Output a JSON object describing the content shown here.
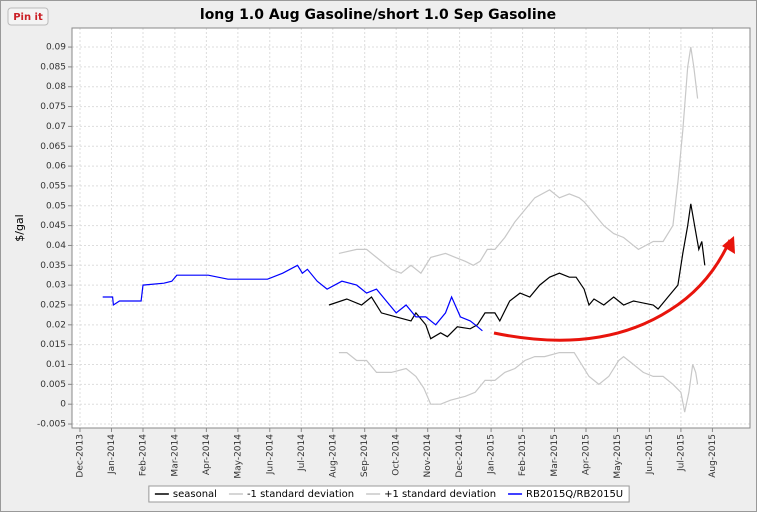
{
  "pin_label": "Pin it",
  "chart_data": {
    "type": "line",
    "title": "long 1.0 Aug Gasoline/short 1.0 Sep Gasoline",
    "y_label": "$/gal",
    "xlim": [
      2013.896,
      2015.682
    ],
    "ylim": [
      -0.006,
      0.0948
    ],
    "xticks": [
      {
        "value": 2013.917,
        "label": "Dec-2013"
      },
      {
        "value": 2014,
        "label": "Jan-2014"
      },
      {
        "value": 2014.083,
        "label": "Feb-2014"
      },
      {
        "value": 2014.167,
        "label": "Mar-2014"
      },
      {
        "value": 2014.25,
        "label": "Apr-2014"
      },
      {
        "value": 2014.333,
        "label": "May-2014"
      },
      {
        "value": 2014.417,
        "label": "Jun-2014"
      },
      {
        "value": 2014.5,
        "label": "Jul-2014"
      },
      {
        "value": 2014.583,
        "label": "Aug-2014"
      },
      {
        "value": 2014.667,
        "label": "Sep-2014"
      },
      {
        "value": 2014.75,
        "label": "Oct-2014"
      },
      {
        "value": 2014.833,
        "label": "Nov-2014"
      },
      {
        "value": 2014.917,
        "label": "Dec-2014"
      },
      {
        "value": 2015,
        "label": "Jan-2015"
      },
      {
        "value": 2015.083,
        "label": "Feb-2015"
      },
      {
        "value": 2015.167,
        "label": "Mar-2015"
      },
      {
        "value": 2015.25,
        "label": "Apr-2015"
      },
      {
        "value": 2015.333,
        "label": "May-2015"
      },
      {
        "value": 2015.417,
        "label": "Jun-2015"
      },
      {
        "value": 2015.5,
        "label": "Jul-2015"
      },
      {
        "value": 2015.583,
        "label": "Aug-2015"
      }
    ],
    "yticks": [
      -0.005,
      0,
      0.005,
      0.01,
      0.015,
      0.02,
      0.025,
      0.03,
      0.035,
      0.04,
      0.045,
      0.05,
      0.055,
      0.06,
      0.065,
      0.07,
      0.075,
      0.08,
      0.085,
      0.09
    ],
    "grid": true,
    "legend": "bottom",
    "series": [
      {
        "name": "seasonal",
        "color": "#000000",
        "x": [
          2014.573,
          2014.62,
          2014.659,
          2014.685,
          2014.711,
          2014.75,
          2014.789,
          2014.802,
          2014.828,
          2014.841,
          2014.867,
          2014.885,
          2014.911,
          2014.945,
          2014.964,
          2014.984,
          2015.01,
          2015.023,
          2015.049,
          2015.076,
          2015.102,
          2015.128,
          2015.154,
          2015.18,
          2015.206,
          2015.224,
          2015.245,
          2015.258,
          2015.271,
          2015.297,
          2015.323,
          2015.349,
          2015.375,
          2015.427,
          2015.44,
          2015.466,
          2015.492,
          2015.505,
          2015.518,
          2015.526,
          2015.536,
          2015.547,
          2015.555,
          2015.563
        ],
        "values": [
          0.025,
          0.0265,
          0.025,
          0.027,
          0.023,
          0.022,
          0.021,
          0.023,
          0.02,
          0.0165,
          0.018,
          0.017,
          0.0195,
          0.019,
          0.02,
          0.023,
          0.023,
          0.021,
          0.026,
          0.028,
          0.027,
          0.03,
          0.032,
          0.033,
          0.032,
          0.032,
          0.029,
          0.025,
          0.0265,
          0.025,
          0.027,
          0.025,
          0.026,
          0.025,
          0.024,
          0.027,
          0.03,
          0.038,
          0.045,
          0.0505,
          0.045,
          0.039,
          0.041,
          0.035
        ]
      },
      {
        "name": "-1 standard deviation",
        "color": "#c8c8c8",
        "x": [
          2014.599,
          2014.62,
          2014.646,
          2014.672,
          2014.698,
          2014.737,
          2014.776,
          2014.802,
          2014.823,
          2014.841,
          2014.867,
          2014.893,
          2014.932,
          2014.958,
          2014.984,
          2015.01,
          2015.036,
          2015.063,
          2015.089,
          2015.115,
          2015.141,
          2015.18,
          2015.219,
          2015.258,
          2015.271,
          2015.284,
          2015.31,
          2015.336,
          2015.349,
          2015.375,
          2015.401,
          2015.427,
          2015.453,
          2015.479,
          2015.5,
          2015.51,
          2015.521,
          2015.531,
          2015.539,
          2015.544
        ],
        "values": [
          0.013,
          0.013,
          0.011,
          0.011,
          0.008,
          0.008,
          0.009,
          0.007,
          0.004,
          0.0,
          0.0,
          0.001,
          0.002,
          0.003,
          0.006,
          0.006,
          0.008,
          0.009,
          0.011,
          0.012,
          0.012,
          0.013,
          0.013,
          0.007,
          0.006,
          0.005,
          0.007,
          0.011,
          0.012,
          0.01,
          0.008,
          0.007,
          0.007,
          0.005,
          0.003,
          -0.002,
          0.003,
          0.01,
          0.008,
          0.005
        ]
      },
      {
        "name": "+1 standard deviation",
        "color": "#c8c8c8",
        "x": [
          2014.599,
          2014.646,
          2014.672,
          2014.698,
          2014.737,
          2014.763,
          2014.789,
          2014.815,
          2014.841,
          2014.88,
          2014.906,
          2014.932,
          2014.953,
          2014.971,
          2014.99,
          2015.01,
          2015.036,
          2015.063,
          2015.089,
          2015.115,
          2015.154,
          2015.18,
          2015.206,
          2015.232,
          2015.245,
          2015.271,
          2015.297,
          2015.323,
          2015.349,
          2015.388,
          2015.427,
          2015.453,
          2015.479,
          2015.492,
          2015.505,
          2015.518,
          2015.526,
          2015.534,
          2015.544
        ],
        "values": [
          0.038,
          0.039,
          0.039,
          0.037,
          0.034,
          0.033,
          0.035,
          0.033,
          0.037,
          0.038,
          0.037,
          0.036,
          0.035,
          0.036,
          0.039,
          0.039,
          0.042,
          0.046,
          0.049,
          0.052,
          0.054,
          0.052,
          0.053,
          0.052,
          0.051,
          0.048,
          0.045,
          0.043,
          0.042,
          0.039,
          0.041,
          0.041,
          0.045,
          0.056,
          0.069,
          0.085,
          0.09,
          0.085,
          0.077
        ]
      },
      {
        "name": "RB2015Q/RB2015U",
        "color": "#0000ff",
        "x": [
          2013.977,
          2014.003,
          2014.005,
          2014.021,
          2014.078,
          2014.083,
          2014.138,
          2014.159,
          2014.172,
          2014.255,
          2014.307,
          2014.359,
          2014.411,
          2014.451,
          2014.49,
          2014.503,
          2014.516,
          2014.542,
          2014.568,
          2014.607,
          2014.646,
          2014.672,
          2014.698,
          2014.724,
          2014.75,
          2014.776,
          2014.802,
          2014.828,
          2014.854,
          2014.88,
          2014.896,
          2014.919,
          2014.945,
          2014.958,
          2014.977
        ],
        "values": [
          0.027,
          0.027,
          0.025,
          0.026,
          0.026,
          0.03,
          0.0305,
          0.031,
          0.0325,
          0.0325,
          0.0315,
          0.0315,
          0.0315,
          0.033,
          0.035,
          0.033,
          0.034,
          0.031,
          0.029,
          0.031,
          0.03,
          0.028,
          0.029,
          0.026,
          0.023,
          0.025,
          0.022,
          0.022,
          0.02,
          0.023,
          0.027,
          0.022,
          0.021,
          0.02,
          0.0185
        ]
      }
    ]
  }
}
